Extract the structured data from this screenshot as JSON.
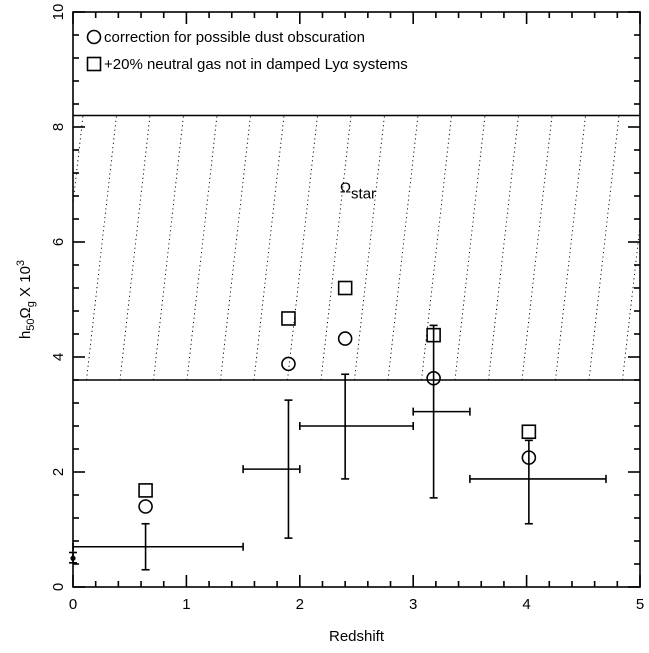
{
  "chart_data": {
    "type": "scatter",
    "xlabel": "Redshift",
    "ylabel": "h₅₀Ω_g X 10³",
    "ylabel_parts": {
      "h": "h",
      "h_sub": "50",
      "omega": "Ω",
      "omega_sub": "g",
      "times": " X 10",
      "exp": "3"
    },
    "xlim": [
      0,
      5
    ],
    "ylim": [
      0,
      10
    ],
    "x_ticks": [
      0,
      1,
      2,
      3,
      4,
      5
    ],
    "y_ticks": [
      0,
      2,
      4,
      6,
      8,
      10
    ],
    "x_tick_labels": [
      "0",
      "1",
      "2",
      "3",
      "4",
      "5"
    ],
    "y_tick_labels": [
      "0",
      "2",
      "4",
      "6",
      "8",
      "10"
    ],
    "band": {
      "y_low": 3.6,
      "y_high": 8.2,
      "label": "Ω",
      "label_sub": "star",
      "label_x": 2.3,
      "label_y": 7.0
    },
    "legend": [
      {
        "marker": "circle",
        "label": "correction for possible dust obscuration"
      },
      {
        "marker": "square",
        "label": "+20% neutral gas not in damped Lyα systems"
      }
    ],
    "series": [
      {
        "marker": "errorbar",
        "points": [
          {
            "x": 0.0,
            "y": 0.5,
            "xerr": [
              0.0,
              0.0
            ],
            "yerr": [
              0.42,
              0.6
            ]
          },
          {
            "x": 0.64,
            "y": 0.7,
            "xerr": [
              0.0,
              1.5
            ],
            "yerr": [
              0.3,
              1.1
            ]
          },
          {
            "x": 1.9,
            "y": 2.05,
            "xerr": [
              1.5,
              2.0
            ],
            "yerr": [
              0.85,
              3.25
            ]
          },
          {
            "x": 2.4,
            "y": 2.8,
            "xerr": [
              2.0,
              3.0
            ],
            "yerr": [
              1.88,
              3.7
            ]
          },
          {
            "x": 3.18,
            "y": 3.05,
            "xerr": [
              3.0,
              3.5
            ],
            "yerr": [
              1.55,
              4.55
            ]
          },
          {
            "x": 4.02,
            "y": 1.88,
            "xerr": [
              3.5,
              4.7
            ],
            "yerr": [
              1.1,
              2.55
            ]
          }
        ]
      },
      {
        "marker": "circle",
        "points": [
          {
            "x": 0.64,
            "y": 1.4
          },
          {
            "x": 1.9,
            "y": 3.88
          },
          {
            "x": 2.4,
            "y": 4.32
          },
          {
            "x": 3.18,
            "y": 3.63
          },
          {
            "x": 4.02,
            "y": 2.25
          }
        ]
      },
      {
        "marker": "square",
        "points": [
          {
            "x": 0.64,
            "y": 1.68
          },
          {
            "x": 1.9,
            "y": 4.67
          },
          {
            "x": 2.4,
            "y": 5.2
          },
          {
            "x": 3.18,
            "y": 4.38
          },
          {
            "x": 4.02,
            "y": 2.7
          }
        ]
      }
    ]
  }
}
